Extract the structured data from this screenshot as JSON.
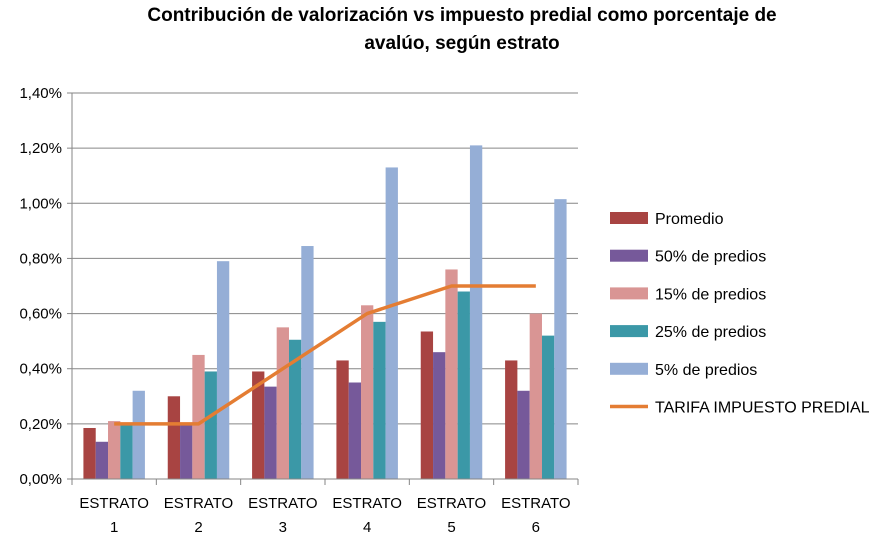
{
  "chart_data": {
    "type": "bar",
    "title_lines": [
      "Contribución de valorización vs impuesto predial como porcentaje de",
      "avalúo, según estrato"
    ],
    "categories": [
      [
        "ESTRATO",
        "1"
      ],
      [
        "ESTRATO",
        "2"
      ],
      [
        "ESTRATO",
        "3"
      ],
      [
        "ESTRATO",
        "4"
      ],
      [
        "ESTRATO",
        "5"
      ],
      [
        "ESTRATO",
        "6"
      ]
    ],
    "ylim": [
      0,
      1.4
    ],
    "yticks": [
      0,
      0.2,
      0.4,
      0.6,
      0.8,
      1.0,
      1.2,
      1.4
    ],
    "ytick_labels": [
      "0,00%",
      "0,20%",
      "0,40%",
      "0,60%",
      "0,80%",
      "1,00%",
      "1,20%",
      "1,40%"
    ],
    "grid": true,
    "legend_position": "right",
    "series": [
      {
        "name": "Promedio",
        "color": "#A84442",
        "values": [
          0.185,
          0.3,
          0.39,
          0.43,
          0.535,
          0.43
        ]
      },
      {
        "name": "50% de predios",
        "color": "#76599A",
        "values": [
          0.135,
          0.2,
          0.335,
          0.35,
          0.46,
          0.32
        ]
      },
      {
        "name": "15% de predios",
        "color": "#D99594",
        "values": [
          0.21,
          0.45,
          0.55,
          0.63,
          0.76,
          0.6
        ]
      },
      {
        "name": "25% de predios",
        "color": "#3B98A7",
        "values": [
          0.2,
          0.39,
          0.505,
          0.57,
          0.68,
          0.52
        ]
      },
      {
        "name": "5% de predios",
        "color": "#95AED6",
        "values": [
          0.32,
          0.79,
          0.845,
          1.13,
          1.21,
          1.015
        ]
      }
    ],
    "line_series": {
      "name": "TARIFA IMPUESTO PREDIAL",
      "color": "#E47D33",
      "values": [
        0.2,
        0.2,
        0.4,
        0.6,
        0.7,
        0.7
      ]
    }
  }
}
